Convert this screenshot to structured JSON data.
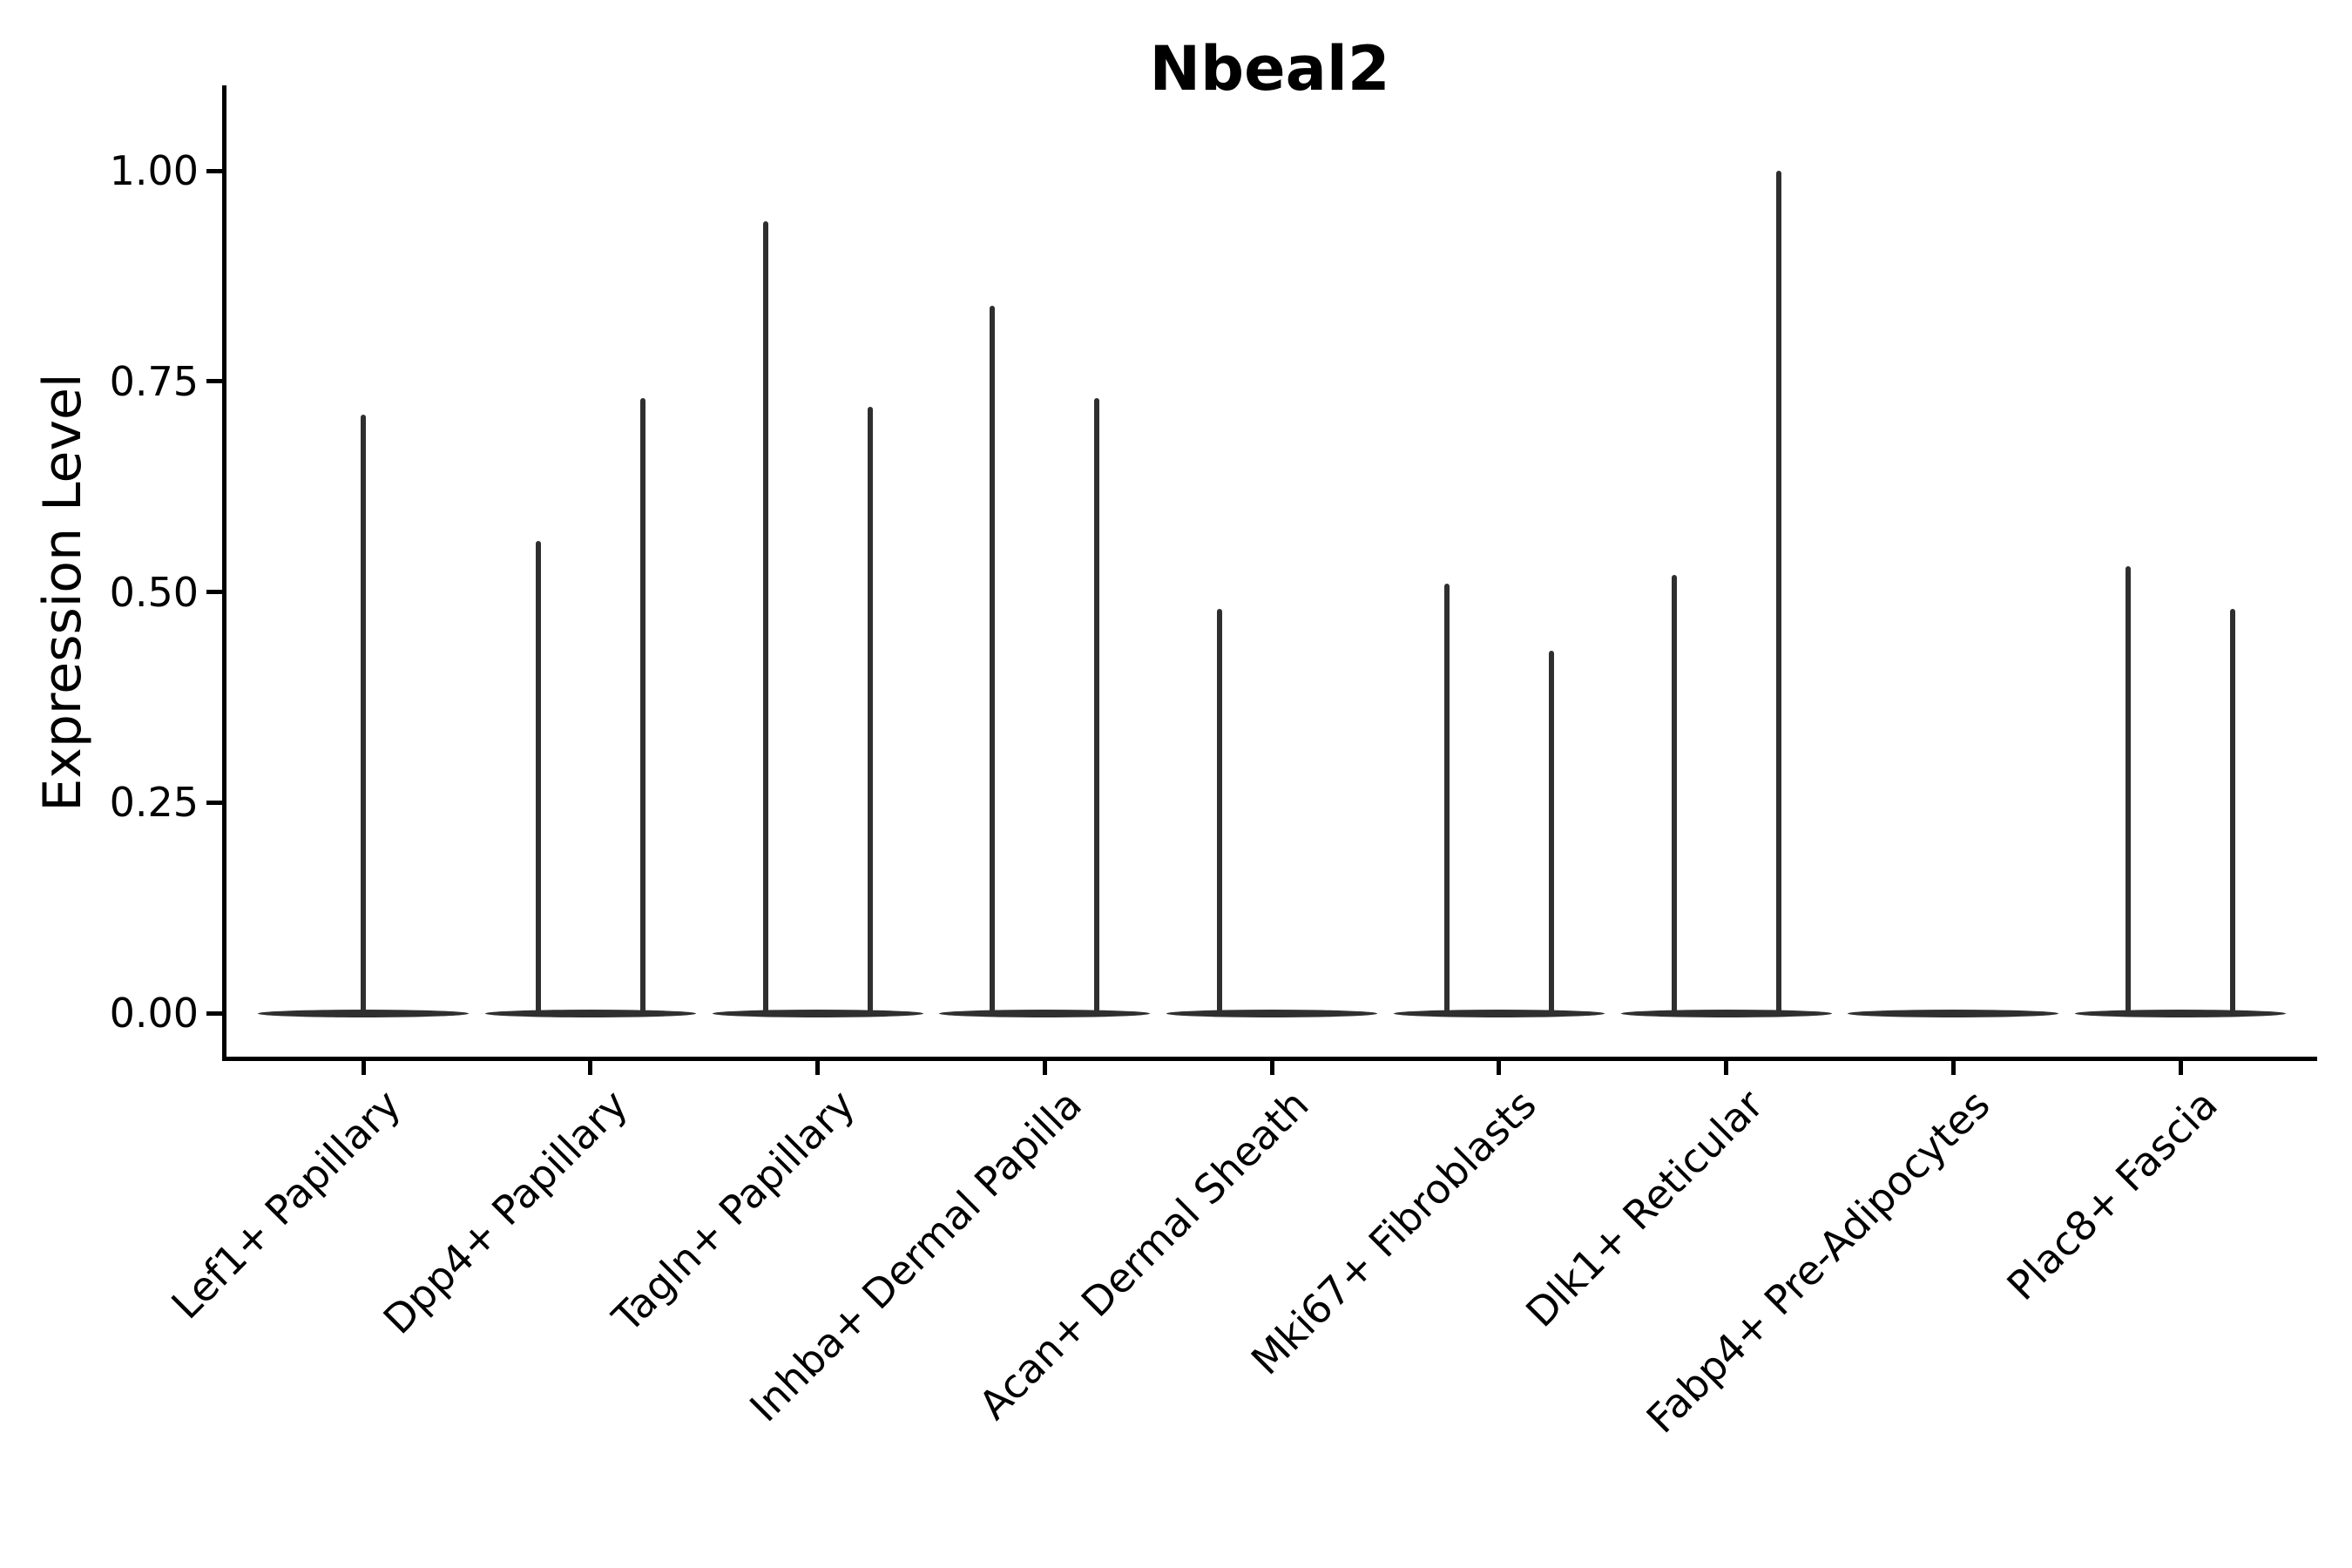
{
  "chart_data": {
    "type": "violin",
    "title": "Nbeal2",
    "ylabel": "Expression Level",
    "xlabel": "",
    "ylim": [
      0,
      1.05
    ],
    "grid": false,
    "legend": false,
    "line_color": "#2f2f2f",
    "axis_color": "#000000",
    "background_color": "#ffffff",
    "yticks": [
      {
        "value": 0.0,
        "label": "0.00"
      },
      {
        "value": 0.25,
        "label": "0.25"
      },
      {
        "value": 0.5,
        "label": "0.50"
      },
      {
        "value": 0.75,
        "label": "0.75"
      },
      {
        "value": 1.0,
        "label": "1.00"
      }
    ],
    "categories": [
      "Lef1+ Papillary",
      "Dpp4+ Papillary",
      "Tagln+ Papillary",
      "Inhba+ Dermal Papilla",
      "Acan+ Dermal Sheath",
      "Mki67+ Fibroblasts",
      "Dlk1+ Reticular",
      "Fabp4+ Pre-Adipocytes",
      "Plac8+ Fascia"
    ],
    "violins": [
      {
        "category": "Lef1+ Papillary",
        "base_at_zero": true,
        "spikes": [
          {
            "group": "center",
            "max": 0.71
          }
        ]
      },
      {
        "category": "Dpp4+ Papillary",
        "base_at_zero": true,
        "spikes": [
          {
            "group": "left",
            "max": 0.56
          },
          {
            "group": "right",
            "max": 0.73
          }
        ]
      },
      {
        "category": "Tagln+ Papillary",
        "base_at_zero": true,
        "spikes": [
          {
            "group": "left",
            "max": 0.94
          },
          {
            "group": "right",
            "max": 0.72
          }
        ]
      },
      {
        "category": "Inhba+ Dermal Papilla",
        "base_at_zero": true,
        "spikes": [
          {
            "group": "left",
            "max": 0.84
          },
          {
            "group": "right",
            "max": 0.73
          }
        ]
      },
      {
        "category": "Acan+ Dermal Sheath",
        "base_at_zero": true,
        "spikes": [
          {
            "group": "left",
            "max": 0.48
          }
        ]
      },
      {
        "category": "Mki67+ Fibroblasts",
        "base_at_zero": true,
        "spikes": [
          {
            "group": "left",
            "max": 0.51
          },
          {
            "group": "right",
            "max": 0.43
          }
        ]
      },
      {
        "category": "Dlk1+ Reticular",
        "base_at_zero": true,
        "spikes": [
          {
            "group": "left",
            "max": 0.52
          },
          {
            "group": "right",
            "max": 1.0
          }
        ]
      },
      {
        "category": "Fabp4+ Pre-Adipocytes",
        "base_at_zero": true,
        "spikes": []
      },
      {
        "category": "Plac8+ Fascia",
        "base_at_zero": true,
        "spikes": [
          {
            "group": "left",
            "max": 0.53
          },
          {
            "group": "right",
            "max": 0.48
          }
        ]
      }
    ]
  }
}
